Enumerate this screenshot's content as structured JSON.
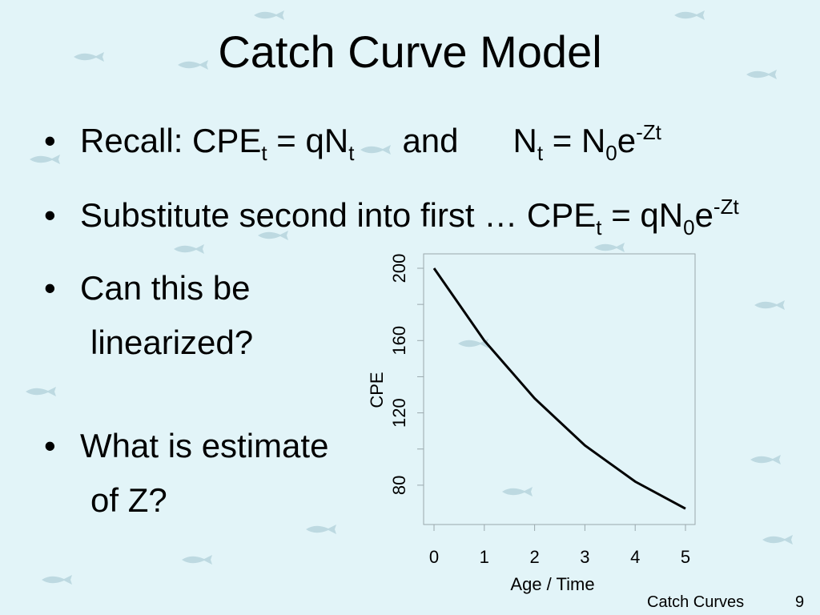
{
  "slide": {
    "title": "Catch Curve Model",
    "footer": {
      "label": "Catch Curves",
      "page": "9"
    }
  },
  "bullets": {
    "b1": {
      "text1": "Recall: CPE",
      "sub1": "t",
      "text2": " = qN",
      "sub2": "t",
      "text3": "and",
      "text4": "N",
      "sub3": "t",
      "text5": " = N",
      "sub4": "0",
      "text6": "e",
      "sup1": "-Zt"
    },
    "b2": {
      "text1": "Substitute second into first … CPE",
      "sub1": "t",
      "text2": " = qN",
      "sub2": "0",
      "text3": "e",
      "sup1": "-Zt"
    },
    "b3": {
      "line1": "Can this be",
      "line2": "linearized?"
    },
    "b4": {
      "line1": "What is estimate",
      "line2": "of Z?"
    },
    "bullet_char": "•"
  },
  "chart_data": {
    "type": "line",
    "x": [
      0,
      1,
      2,
      3,
      4,
      5
    ],
    "y": [
      200,
      160,
      128,
      102,
      82,
      67
    ],
    "xlabel": "Age / Time",
    "ylabel": "CPE",
    "xlim": [
      0,
      5
    ],
    "ylim": [
      80,
      200
    ],
    "xticks": [
      "0",
      "1",
      "2",
      "3",
      "4",
      "5"
    ],
    "yticks": [
      "80",
      "120",
      "160",
      "200"
    ],
    "line_color": "#000000"
  }
}
